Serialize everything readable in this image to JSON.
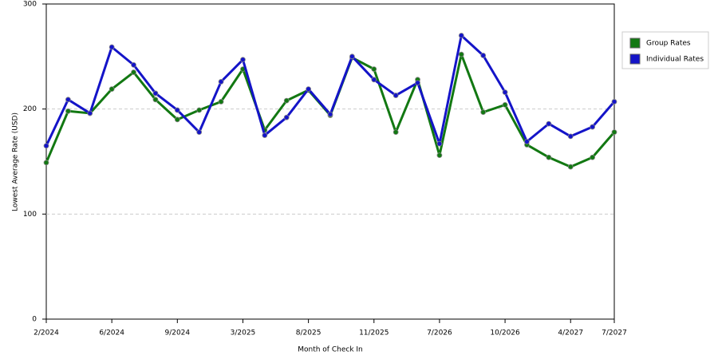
{
  "chart_data": {
    "type": "line",
    "x_label": "Month of Check In",
    "y_label": "Lowest Average Rate (USD)",
    "categories": [
      "2/2024",
      null,
      null,
      "6/2024",
      null,
      null,
      "9/2024",
      null,
      null,
      "3/2025",
      null,
      null,
      "8/2025",
      null,
      null,
      "11/2025",
      null,
      null,
      "7/2026",
      null,
      null,
      "10/2026",
      null,
      null,
      "4/2027",
      null,
      "7/2027"
    ],
    "series": [
      {
        "name": "Group Rates",
        "color": "#127812",
        "values": [
          149,
          198,
          196,
          219,
          235,
          209,
          190,
          199,
          207,
          238,
          180,
          208,
          218,
          194,
          249,
          238,
          178,
          228,
          156,
          252,
          197,
          204,
          166,
          154,
          145,
          154,
          178
        ]
      },
      {
        "name": "Individual Rates",
        "color": "#1414c8",
        "values": [
          165,
          209,
          196,
          259,
          242,
          215,
          199,
          178,
          226,
          247,
          175,
          192,
          219,
          195,
          250,
          228,
          213,
          225,
          167,
          270,
          251,
          216,
          169,
          186,
          174,
          183,
          207
        ]
      }
    ],
    "ylim": [
      0,
      300
    ],
    "yticks": [
      0,
      100,
      200,
      300
    ],
    "grid": true,
    "legend": "right"
  }
}
